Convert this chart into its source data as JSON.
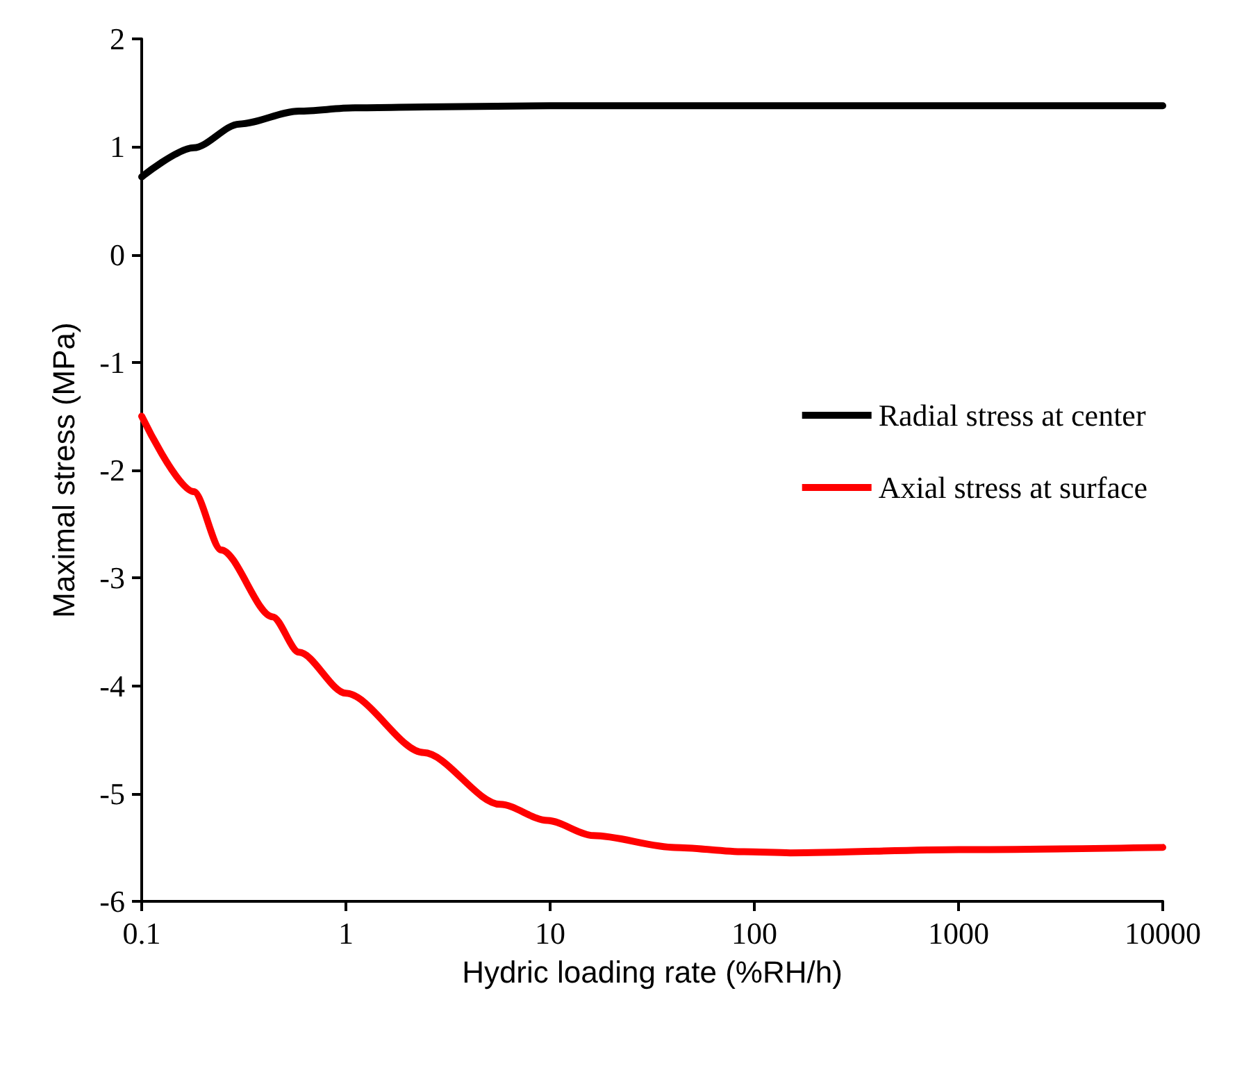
{
  "chart_data": {
    "type": "line",
    "xlabel": "Hydric loading rate (%RH/h)",
    "ylabel": "Maximal stress (MPa)",
    "log": "x",
    "xlim": [
      0.1,
      10000
    ],
    "xticks": [
      0.1,
      1,
      10,
      100,
      1000,
      10000
    ],
    "ylim": [
      -6,
      2
    ],
    "yticks": [
      -6,
      -5,
      -4,
      -3,
      -2,
      -1,
      0,
      1,
      2
    ],
    "grid": false,
    "legend": "right",
    "marker": "none",
    "line_style": "solid",
    "series": [
      {
        "name": "Radial stress at center",
        "color": "#000000",
        "x": [
          0.1,
          0.18,
          0.3,
          0.59,
          1.1,
          3,
          10,
          100,
          1000,
          10000
        ],
        "values": [
          0.72,
          0.99,
          1.21,
          1.33,
          1.36,
          1.37,
          1.38,
          1.38,
          1.38,
          1.38
        ]
      },
      {
        "name": "Axial stress at surface",
        "color": "#ff0000",
        "x": [
          0.1,
          0.18,
          0.245,
          0.437,
          0.59,
          1,
          2.4,
          5.7,
          9.7,
          16.3,
          41,
          89,
          150,
          1000,
          10000
        ],
        "values": [
          -1.5,
          -2.2,
          -2.74,
          -3.36,
          -3.69,
          -4.07,
          -4.62,
          -5.1,
          -5.25,
          -5.39,
          -5.5,
          -5.54,
          -5.55,
          -5.52,
          -5.5
        ]
      }
    ]
  }
}
